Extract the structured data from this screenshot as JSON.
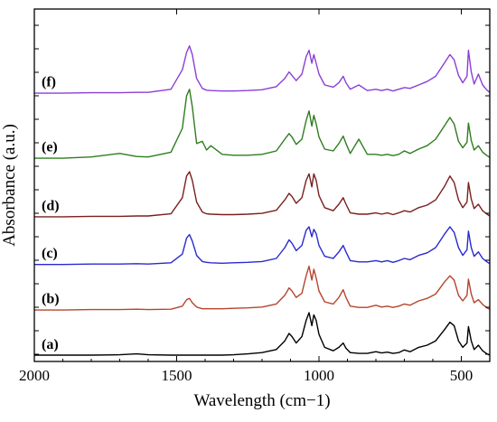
{
  "chart_data": {
    "type": "line",
    "xlabel": "Wavelength (cm−1)",
    "ylabel": "Absorbance (a.u.)",
    "xlim": [
      2000,
      400
    ],
    "x_reversed": true,
    "x_ticks": [
      2000,
      1500,
      1000,
      500
    ],
    "y_ticks_visible": false,
    "grid": false,
    "legend": "inline labels at left",
    "x": [
      2000,
      1900,
      1800,
      1700,
      1640,
      1600,
      1520,
      1480,
      1465,
      1455,
      1445,
      1430,
      1410,
      1395,
      1380,
      1340,
      1300,
      1250,
      1200,
      1150,
      1120,
      1105,
      1095,
      1080,
      1060,
      1045,
      1035,
      1025,
      1018,
      1010,
      1000,
      980,
      950,
      930,
      915,
      905,
      890,
      860,
      830,
      800,
      780,
      760,
      740,
      720,
      700,
      680,
      650,
      620,
      590,
      560,
      540,
      525,
      510,
      495,
      480,
      475,
      465,
      455,
      440,
      425,
      410,
      400
    ],
    "series": [
      {
        "name": "(a)",
        "color": "#000000",
        "offset": 0,
        "values": [
          0.02,
          0.02,
          0.02,
          0.03,
          0.05,
          0.03,
          0.02,
          0.02,
          0.02,
          0.02,
          0.02,
          0.02,
          0.02,
          0.02,
          0.02,
          0.02,
          0.03,
          0.05,
          0.08,
          0.15,
          0.35,
          0.52,
          0.45,
          0.3,
          0.45,
          0.82,
          1.0,
          0.7,
          0.95,
          0.82,
          0.5,
          0.2,
          0.12,
          0.2,
          0.3,
          0.18,
          0.08,
          0.06,
          0.06,
          0.1,
          0.07,
          0.09,
          0.06,
          0.08,
          0.14,
          0.1,
          0.2,
          0.25,
          0.35,
          0.6,
          0.78,
          0.7,
          0.35,
          0.2,
          0.3,
          0.68,
          0.35,
          0.15,
          0.25,
          0.12,
          0.05,
          0.02
        ]
      },
      {
        "name": "(b)",
        "color": "#b5452e",
        "offset": 1.05,
        "values": [
          0.01,
          0.01,
          0.02,
          0.02,
          0.03,
          0.02,
          0.03,
          0.1,
          0.25,
          0.28,
          0.18,
          0.08,
          0.04,
          0.04,
          0.04,
          0.04,
          0.05,
          0.06,
          0.08,
          0.15,
          0.35,
          0.52,
          0.45,
          0.3,
          0.4,
          0.8,
          1.02,
          0.7,
          0.95,
          0.75,
          0.45,
          0.2,
          0.15,
          0.3,
          0.48,
          0.3,
          0.1,
          0.07,
          0.07,
          0.12,
          0.08,
          0.1,
          0.07,
          0.1,
          0.15,
          0.12,
          0.22,
          0.28,
          0.38,
          0.65,
          0.8,
          0.7,
          0.35,
          0.22,
          0.35,
          0.72,
          0.38,
          0.18,
          0.25,
          0.14,
          0.06,
          0.03
        ]
      },
      {
        "name": "(c)",
        "color": "#2a2ad0",
        "offset": 2.1,
        "values": [
          0.01,
          0.01,
          0.02,
          0.02,
          0.03,
          0.02,
          0.05,
          0.25,
          0.62,
          0.7,
          0.55,
          0.22,
          0.08,
          0.06,
          0.05,
          0.04,
          0.05,
          0.06,
          0.08,
          0.15,
          0.4,
          0.58,
          0.5,
          0.33,
          0.45,
          0.8,
          0.88,
          0.65,
          0.82,
          0.72,
          0.45,
          0.2,
          0.15,
          0.3,
          0.45,
          0.3,
          0.1,
          0.07,
          0.07,
          0.1,
          0.07,
          0.1,
          0.06,
          0.1,
          0.15,
          0.12,
          0.22,
          0.28,
          0.4,
          0.7,
          0.88,
          0.75,
          0.4,
          0.22,
          0.35,
          0.78,
          0.4,
          0.2,
          0.3,
          0.15,
          0.07,
          0.03
        ]
      },
      {
        "name": "(d)",
        "color": "#7a1f1f",
        "offset": 3.2,
        "values": [
          0.01,
          0.01,
          0.02,
          0.02,
          0.03,
          0.03,
          0.08,
          0.45,
          0.95,
          1.05,
          0.85,
          0.35,
          0.12,
          0.08,
          0.07,
          0.06,
          0.06,
          0.07,
          0.09,
          0.16,
          0.4,
          0.55,
          0.48,
          0.32,
          0.45,
          0.85,
          1.0,
          0.7,
          1.0,
          0.85,
          0.5,
          0.22,
          0.15,
          0.3,
          0.45,
          0.3,
          0.1,
          0.07,
          0.07,
          0.1,
          0.07,
          0.1,
          0.06,
          0.1,
          0.15,
          0.12,
          0.22,
          0.28,
          0.4,
          0.7,
          0.95,
          0.8,
          0.4,
          0.22,
          0.35,
          0.8,
          0.42,
          0.2,
          0.3,
          0.15,
          0.07,
          0.03
        ]
      },
      {
        "name": "(e)",
        "color": "#2e7d1f",
        "offset": 4.55,
        "values": [
          0.01,
          0.01,
          0.04,
          0.12,
          0.05,
          0.04,
          0.15,
          0.7,
          1.45,
          1.6,
          1.2,
          0.35,
          0.4,
          0.2,
          0.3,
          0.1,
          0.08,
          0.08,
          0.1,
          0.18,
          0.45,
          0.58,
          0.5,
          0.33,
          0.45,
          0.88,
          1.1,
          0.75,
          1.0,
          0.8,
          0.5,
          0.22,
          0.18,
          0.35,
          0.52,
          0.35,
          0.12,
          0.45,
          0.1,
          0.1,
          0.08,
          0.1,
          0.07,
          0.1,
          0.18,
          0.12,
          0.22,
          0.3,
          0.45,
          0.75,
          0.95,
          0.8,
          0.4,
          0.25,
          0.38,
          0.82,
          0.42,
          0.2,
          0.3,
          0.15,
          0.07,
          0.03
        ]
      },
      {
        "name": "(f)",
        "color": "#8a3fd6",
        "offset": 6.05,
        "values": [
          0.01,
          0.01,
          0.02,
          0.02,
          0.03,
          0.03,
          0.1,
          0.55,
          0.95,
          1.1,
          0.9,
          0.35,
          0.12,
          0.08,
          0.07,
          0.06,
          0.06,
          0.07,
          0.09,
          0.16,
          0.35,
          0.5,
          0.42,
          0.3,
          0.45,
          0.85,
          1.0,
          0.7,
          0.9,
          0.7,
          0.45,
          0.2,
          0.15,
          0.25,
          0.4,
          0.25,
          0.1,
          0.2,
          0.07,
          0.1,
          0.07,
          0.1,
          0.06,
          0.1,
          0.14,
          0.12,
          0.2,
          0.28,
          0.4,
          0.7,
          0.9,
          0.78,
          0.42,
          0.25,
          0.4,
          1.0,
          0.5,
          0.22,
          0.45,
          0.2,
          0.08,
          0.03
        ]
      }
    ]
  }
}
